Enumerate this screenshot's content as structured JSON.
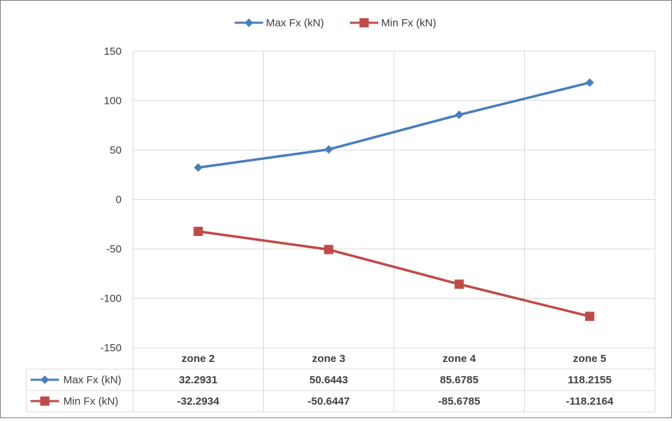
{
  "chart_data": {
    "type": "line",
    "categories": [
      "zone 2",
      "zone 3",
      "zone 4",
      "zone 5"
    ],
    "series": [
      {
        "name": "Max Fx (kN)",
        "values": [
          32.2931,
          50.6443,
          85.6785,
          118.2155
        ],
        "display_values": [
          "32.2931",
          "50.6443",
          "85.6785",
          "118.2155"
        ],
        "color": "#4a7ebb",
        "marker": "diamond"
      },
      {
        "name": "Min Fx (kN)",
        "values": [
          -32.2934,
          -50.6447,
          -85.6785,
          -118.2164
        ],
        "display_values": [
          "-32.2934",
          "-50.6447",
          "-85.6785",
          "-118.2164"
        ],
        "color": "#be4b48",
        "marker": "square"
      }
    ],
    "ylim": [
      -150,
      150
    ],
    "yticks": [
      "150",
      "100",
      "50",
      "0",
      "-50",
      "-100",
      "-150"
    ],
    "grid": "vertical and horizontal",
    "legend": "top",
    "data_table": true,
    "title": "",
    "xlabel": "",
    "ylabel": ""
  }
}
